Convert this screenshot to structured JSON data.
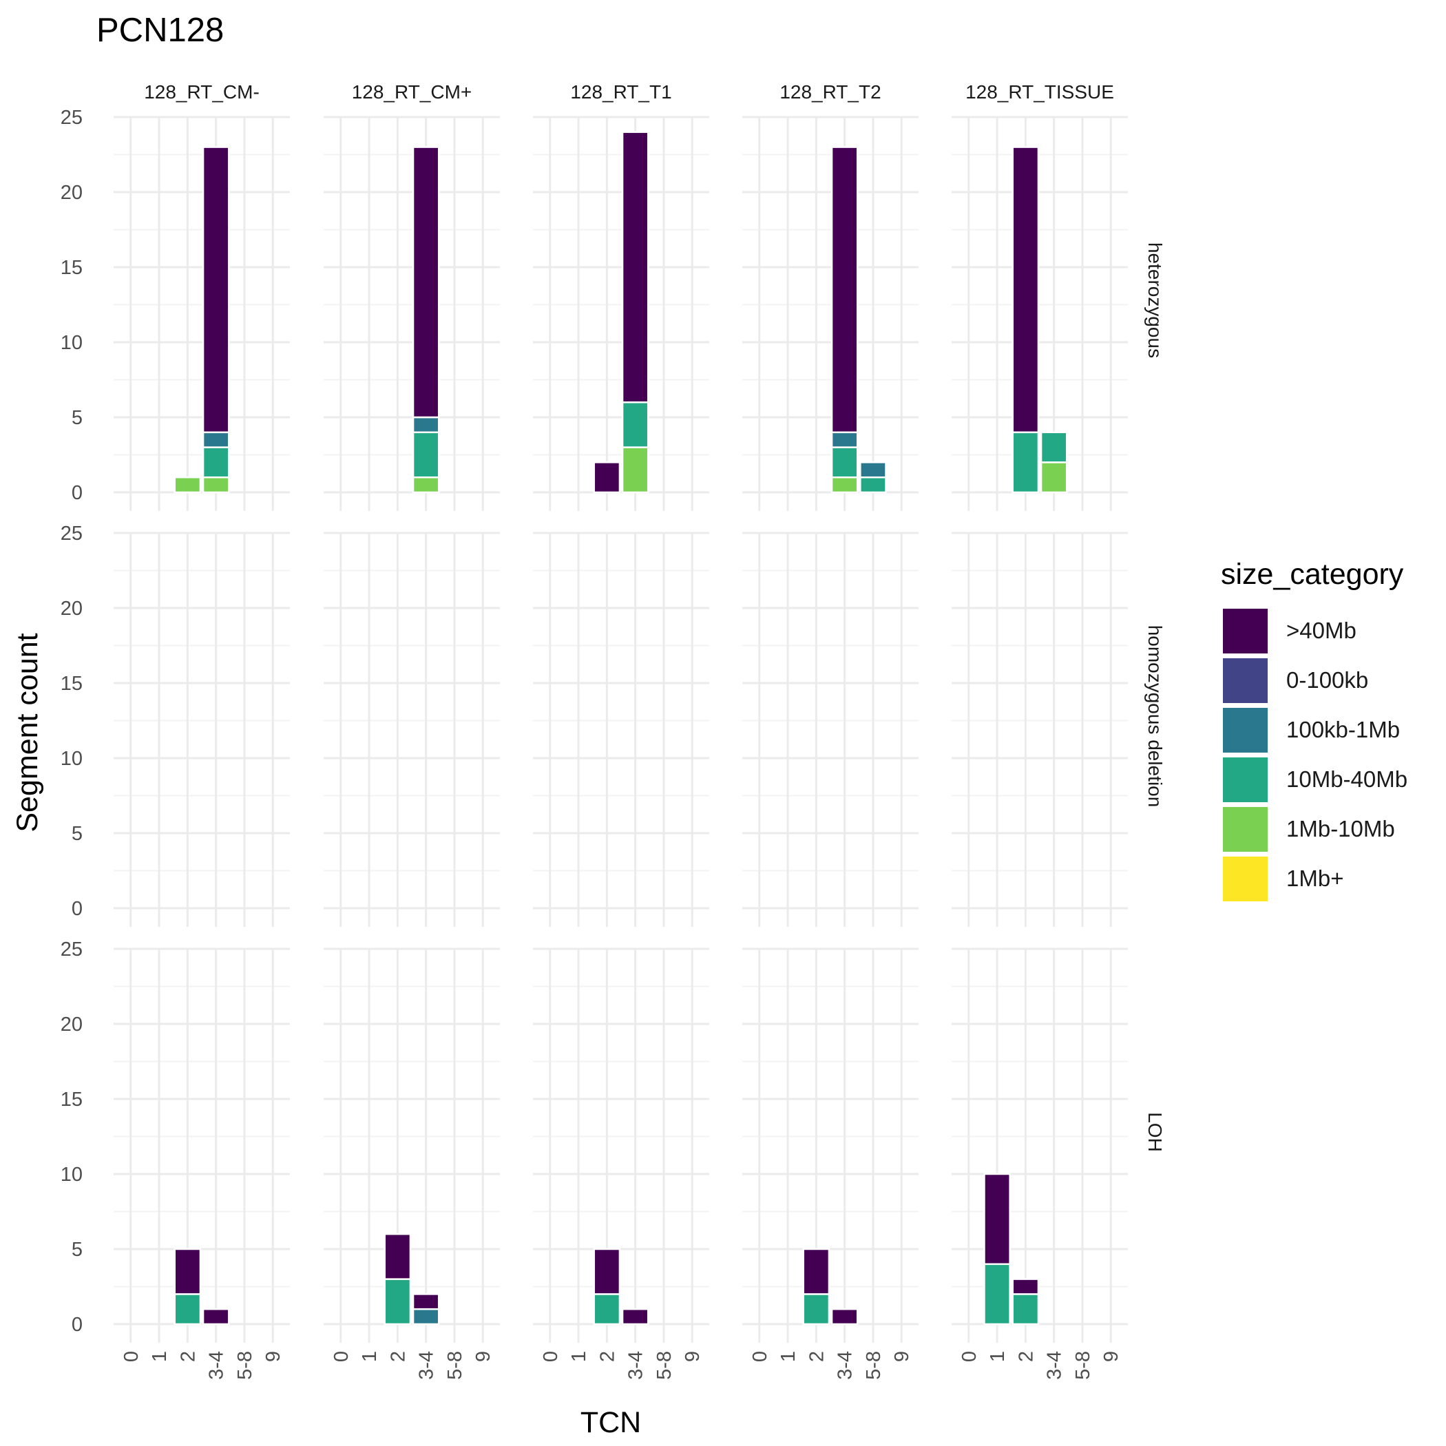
{
  "chart_data": {
    "type": "bar",
    "stacked": true,
    "title": "PCN128",
    "xlabel": "TCN",
    "ylabel": "Segment count",
    "ylim": [
      0,
      25
    ],
    "y_ticks": [
      0,
      5,
      10,
      15,
      20,
      25
    ],
    "categories": [
      "0",
      "1",
      "2",
      "3-4",
      "5-8",
      "9"
    ],
    "columns": [
      "128_RT_CM-",
      "128_RT_CM+",
      "128_RT_T1",
      "128_RT_T2",
      "128_RT_TISSUE"
    ],
    "rows": [
      "heterozygous",
      "homozygous deletion",
      "LOH"
    ],
    "grid": true,
    "legend": {
      "title": "size_category",
      "position": "right",
      "items": [
        {
          "name": ">40Mb",
          "color": "#440154"
        },
        {
          "name": "0-100kb",
          "color": "#414487"
        },
        {
          "name": "100kb-1Mb",
          "color": "#2A788E"
        },
        {
          "name": "10Mb-40Mb",
          "color": "#22A884"
        },
        {
          "name": "1Mb-10Mb",
          "color": "#7AD151"
        },
        {
          "name": "1Mb+",
          "color": "#FDE725"
        }
      ]
    },
    "stack_order_bottom_to_top": [
      "1Mb-10Mb",
      "10Mb-40Mb",
      "100kb-1Mb",
      ">40Mb"
    ],
    "panels": [
      {
        "column": "128_RT_CM-",
        "row": "heterozygous",
        "bars": [
          {
            "x": "2",
            "segments": {
              "1Mb-10Mb": 1
            }
          },
          {
            "x": "3-4",
            "segments": {
              "1Mb-10Mb": 1,
              "10Mb-40Mb": 2,
              "100kb-1Mb": 1,
              ">40Mb": 19
            }
          }
        ]
      },
      {
        "column": "128_RT_CM+",
        "row": "heterozygous",
        "bars": [
          {
            "x": "3-4",
            "segments": {
              "1Mb-10Mb": 1,
              "10Mb-40Mb": 3,
              "100kb-1Mb": 1,
              ">40Mb": 18
            }
          }
        ]
      },
      {
        "column": "128_RT_T1",
        "row": "heterozygous",
        "bars": [
          {
            "x": "2",
            "segments": {
              ">40Mb": 2
            }
          },
          {
            "x": "3-4",
            "segments": {
              "1Mb-10Mb": 3,
              "10Mb-40Mb": 3,
              ">40Mb": 18
            }
          }
        ]
      },
      {
        "column": "128_RT_T2",
        "row": "heterozygous",
        "bars": [
          {
            "x": "3-4",
            "segments": {
              "1Mb-10Mb": 1,
              "10Mb-40Mb": 2,
              "100kb-1Mb": 1,
              ">40Mb": 19
            }
          },
          {
            "x": "5-8",
            "segments": {
              "10Mb-40Mb": 1,
              "100kb-1Mb": 1
            }
          }
        ]
      },
      {
        "column": "128_RT_TISSUE",
        "row": "heterozygous",
        "bars": [
          {
            "x": "2",
            "segments": {
              "10Mb-40Mb": 4,
              ">40Mb": 19
            }
          },
          {
            "x": "3-4",
            "segments": {
              "1Mb-10Mb": 2,
              "10Mb-40Mb": 2
            }
          }
        ]
      },
      {
        "column": "128_RT_CM-",
        "row": "homozygous deletion",
        "bars": []
      },
      {
        "column": "128_RT_CM+",
        "row": "homozygous deletion",
        "bars": []
      },
      {
        "column": "128_RT_T1",
        "row": "homozygous deletion",
        "bars": []
      },
      {
        "column": "128_RT_T2",
        "row": "homozygous deletion",
        "bars": []
      },
      {
        "column": "128_RT_TISSUE",
        "row": "homozygous deletion",
        "bars": []
      },
      {
        "column": "128_RT_CM-",
        "row": "LOH",
        "bars": [
          {
            "x": "2",
            "segments": {
              "10Mb-40Mb": 2,
              ">40Mb": 3
            }
          },
          {
            "x": "3-4",
            "segments": {
              ">40Mb": 1
            }
          }
        ]
      },
      {
        "column": "128_RT_CM+",
        "row": "LOH",
        "bars": [
          {
            "x": "2",
            "segments": {
              "10Mb-40Mb": 3,
              ">40Mb": 3
            }
          },
          {
            "x": "3-4",
            "segments": {
              "100kb-1Mb": 1,
              ">40Mb": 1
            }
          }
        ]
      },
      {
        "column": "128_RT_T1",
        "row": "LOH",
        "bars": [
          {
            "x": "2",
            "segments": {
              "10Mb-40Mb": 2,
              ">40Mb": 3
            }
          },
          {
            "x": "3-4",
            "segments": {
              ">40Mb": 1
            }
          }
        ]
      },
      {
        "column": "128_RT_T2",
        "row": "LOH",
        "bars": [
          {
            "x": "2",
            "segments": {
              "10Mb-40Mb": 2,
              ">40Mb": 3
            }
          },
          {
            "x": "3-4",
            "segments": {
              ">40Mb": 1
            }
          }
        ]
      },
      {
        "column": "128_RT_TISSUE",
        "row": "LOH",
        "bars": [
          {
            "x": "1",
            "segments": {
              "10Mb-40Mb": 4,
              ">40Mb": 6
            }
          },
          {
            "x": "2",
            "segments": {
              "10Mb-40Mb": 2,
              ">40Mb": 1
            }
          }
        ]
      }
    ]
  }
}
